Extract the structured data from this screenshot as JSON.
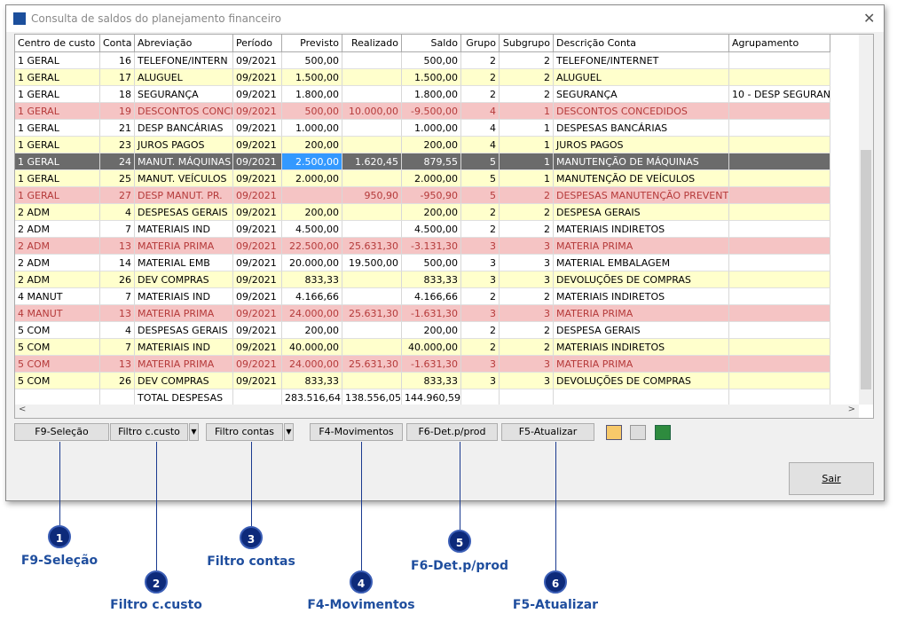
{
  "window": {
    "title": "Consulta de saldos do planejamento financeiro"
  },
  "table": {
    "headers": [
      "Centro de custo",
      "Conta",
      "Abreviação",
      "Período",
      "Previsto",
      "Realizado",
      "Saldo",
      "Grupo",
      "Subgrupo",
      "Descrição Conta",
      "Agrupamento"
    ],
    "rows": [
      [
        "1 GERAL",
        "16",
        "TELEFONE/INTERN",
        "09/2021",
        "500,00",
        null,
        "500,00",
        "2",
        "2",
        "TELEFONE/INTERNET",
        null
      ],
      [
        "1 GERAL",
        "17",
        "ALUGUEL",
        "09/2021",
        "1.500,00",
        null,
        "1.500,00",
        "2",
        "2",
        "ALUGUEL",
        null
      ],
      [
        "1 GERAL",
        "18",
        "SEGURANÇA",
        "09/2021",
        "1.800,00",
        null,
        "1.800,00",
        "2",
        "2",
        "SEGURANÇA",
        "10 - DESP SEGURAN"
      ],
      [
        "1 GERAL",
        "19",
        "DESCONTOS CONCE",
        "09/2021",
        "500,00",
        "10.000,00",
        "-9.500,00",
        "4",
        "1",
        "DESCONTOS CONCEDIDOS",
        null
      ],
      [
        "1 GERAL",
        "21",
        "DESP BANCÁRIAS",
        "09/2021",
        "1.000,00",
        null,
        "1.000,00",
        "4",
        "1",
        "DESPESAS BANCÁRIAS",
        null
      ],
      [
        "1 GERAL",
        "23",
        "JUROS PAGOS",
        "09/2021",
        "200,00",
        null,
        "200,00",
        "4",
        "1",
        "JUROS PAGOS",
        null
      ],
      [
        "1 GERAL",
        "24",
        "MANUT. MÁQUINAS",
        "09/2021",
        "2.500,00",
        "1.620,45",
        "879,55",
        "5",
        "1",
        "MANUTENÇÃO DE MÁQUINAS",
        null
      ],
      [
        "1 GERAL",
        "25",
        "MANUT. VEÍCULOS",
        "09/2021",
        "2.000,00",
        null,
        "2.000,00",
        "5",
        "1",
        "MANUTENÇÃO DE VEÍCULOS",
        null
      ],
      [
        "1 GERAL",
        "27",
        "DESP MANUT. PR.",
        "09/2021",
        null,
        "950,90",
        "-950,90",
        "5",
        "2",
        "DESPESAS MANUTENÇÃO PREVENTIVA",
        null
      ],
      [
        "2 ADM",
        "4",
        "DESPESAS GERAIS",
        "09/2021",
        "200,00",
        null,
        "200,00",
        "2",
        "2",
        "DESPESA GERAIS",
        null
      ],
      [
        "2 ADM",
        "7",
        "MATERIAIS IND",
        "09/2021",
        "4.500,00",
        null,
        "4.500,00",
        "2",
        "2",
        "MATERIAIS INDIRETOS",
        null
      ],
      [
        "2 ADM",
        "13",
        "MATERIA PRIMA",
        "09/2021",
        "22.500,00",
        "25.631,30",
        "-3.131,30",
        "3",
        "3",
        "MATERIA PRIMA",
        null
      ],
      [
        "2 ADM",
        "14",
        "MATERIAL EMB",
        "09/2021",
        "20.000,00",
        "19.500,00",
        "500,00",
        "3",
        "3",
        "MATERIAL EMBALAGEM",
        null
      ],
      [
        "2 ADM",
        "26",
        "DEV COMPRAS",
        "09/2021",
        "833,33",
        null,
        "833,33",
        "3",
        "3",
        "DEVOLUÇÕES DE COMPRAS",
        null
      ],
      [
        "4 MANUT",
        "7",
        "MATERIAIS IND",
        "09/2021",
        "4.166,66",
        null,
        "4.166,66",
        "2",
        "2",
        "MATERIAIS INDIRETOS",
        null
      ],
      [
        "4 MANUT",
        "13",
        "MATERIA PRIMA",
        "09/2021",
        "24.000,00",
        "25.631,30",
        "-1.631,30",
        "3",
        "3",
        "MATERIA PRIMA",
        null
      ],
      [
        "5 COM",
        "4",
        "DESPESAS GERAIS",
        "09/2021",
        "200,00",
        null,
        "200,00",
        "2",
        "2",
        "DESPESA GERAIS",
        null
      ],
      [
        "5 COM",
        "7",
        "MATERIAIS IND",
        "09/2021",
        "40.000,00",
        null,
        "40.000,00",
        "2",
        "2",
        "MATERIAIS INDIRETOS",
        null
      ],
      [
        "5 COM",
        "13",
        "MATERIA PRIMA",
        "09/2021",
        "24.000,00",
        "25.631,30",
        "-1.631,30",
        "3",
        "3",
        "MATERIA PRIMA",
        null
      ],
      [
        "5 COM",
        "26",
        "DEV COMPRAS",
        "09/2021",
        "833,33",
        null,
        "833,33",
        "3",
        "3",
        "DEVOLUÇÕES DE COMPRAS",
        null
      ],
      [
        null,
        null,
        "TOTAL DESPESAS",
        null,
        "283.516,64",
        "138.556,05",
        "144.960,59",
        null,
        null,
        null,
        null
      ]
    ],
    "selected_row": 6
  },
  "toolbar": {
    "buttons": [
      "F9-Seleção",
      "Filtro c.custo",
      "Filtro contas",
      "F4-Movimentos",
      "F6-Det.p/prod",
      "F5-Atualizar"
    ]
  },
  "exit_button": "Sair",
  "callouts": [
    {
      "number": "1",
      "label": "F9-Seleção"
    },
    {
      "number": "2",
      "label": "Filtro c.custo"
    },
    {
      "number": "3",
      "label": "Filtro contas"
    },
    {
      "number": "4",
      "label": "F4-Movimentos"
    },
    {
      "number": "5",
      "label": "F6-Det.p/prod"
    },
    {
      "number": "6",
      "label": "F5-Atualizar"
    }
  ]
}
